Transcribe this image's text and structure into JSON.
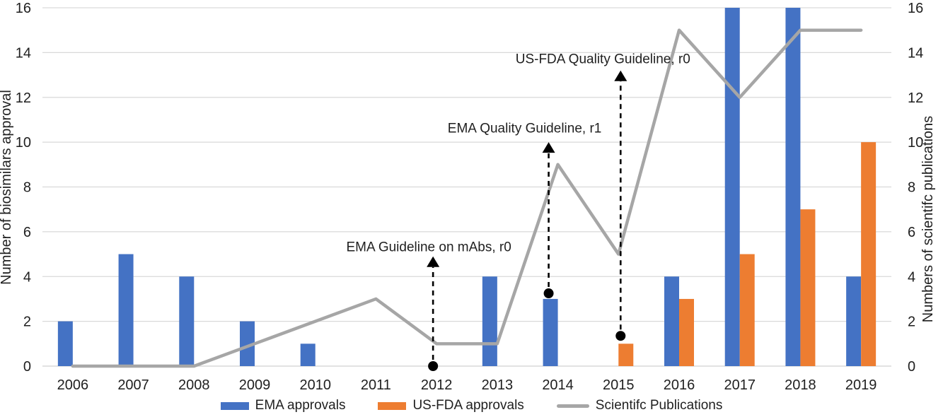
{
  "page": {
    "background": "#FFFFFF"
  },
  "colors": {
    "ema_blue": "#4472C4",
    "fda_orange": "#ED7D31",
    "line_gray": "#A6A6A6",
    "gridline": "#D9D9D9",
    "axis_line": "#D0D0D0",
    "text": "#1F1F1F",
    "annotation": "#000000"
  },
  "chart_data": {
    "type": "bar",
    "subtype": "combo-bar-line",
    "title": "",
    "categories": [
      "2006",
      "2007",
      "2008",
      "2009",
      "2010",
      "2011",
      "2012",
      "2013",
      "2014",
      "2015",
      "2016",
      "2017",
      "2018",
      "2019"
    ],
    "series": [
      {
        "name": "EMA approvals",
        "type": "bar",
        "color": "#4472C4",
        "axis": "left",
        "values": [
          2,
          5,
          4,
          2,
          1,
          0,
          0,
          4,
          3,
          0,
          4,
          16,
          16,
          4
        ]
      },
      {
        "name": "US-FDA approvals",
        "type": "bar",
        "color": "#ED7D31",
        "axis": "left",
        "values": [
          0,
          0,
          0,
          0,
          0,
          0,
          0,
          0,
          0,
          1,
          3,
          5,
          7,
          10
        ]
      },
      {
        "name": "Scientifc Publications",
        "type": "line",
        "color": "#A6A6A6",
        "axis": "right",
        "values": [
          0,
          0,
          0,
          1,
          2,
          3,
          1,
          1,
          9,
          5,
          15,
          12,
          15,
          15
        ]
      }
    ],
    "left_axis": {
      "title": "Number of biosimilars approval",
      "min": 0,
      "max": 16,
      "step": 2
    },
    "right_axis": {
      "title": "Numbers of scientifc publications",
      "min": 0,
      "max": 16,
      "step": 2
    },
    "grid": true,
    "legend_position": "bottom",
    "annotations": [
      {
        "label": "EMA Guideline on mAbs, r0",
        "year": "2012",
        "dot_value": 0,
        "arrow_tip_value": 4.9,
        "label_value": 5.35,
        "x_offset": -5,
        "label_x_offset": -6
      },
      {
        "label": "EMA Quality Guideline, r1",
        "year": "2014",
        "dot_value": 3.25,
        "arrow_tip_value": 10.0,
        "label_value": 10.65,
        "x_offset": -13,
        "label_x_offset": -34
      },
      {
        "label": "US-FDA Quality Guideline, r0",
        "year": "2015",
        "dot_value": 1.35,
        "arrow_tip_value": 13.2,
        "label_value": 13.75,
        "x_offset": 3,
        "label_x_offset": -25
      }
    ]
  }
}
